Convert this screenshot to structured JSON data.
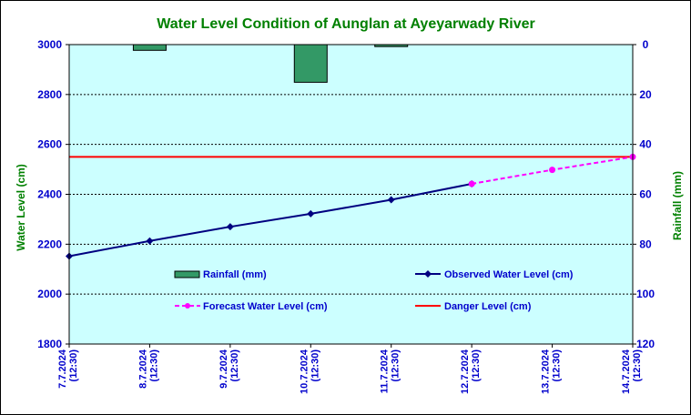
{
  "colors": {
    "plot_bg": "#ccffff",
    "title": "#008000",
    "left_axis": "#0000cc",
    "right_axis": "#008000",
    "rain_fill": "#339966",
    "observed": "#000080",
    "forecast": "#ff00ff",
    "danger": "#ff0000"
  },
  "chart_data": {
    "type": "line",
    "title": "Water Level Condition of Aunglan at Ayeyarwady River",
    "ylabel": "Water Level (cm)",
    "y2label": "Rainfall (mm)",
    "ylim": [
      1800,
      3000
    ],
    "y2lim": [
      0,
      120
    ],
    "y2_reversed": true,
    "grid": true,
    "legend_position": "inside-bottom",
    "y_ticks": [
      "3000",
      "2800",
      "2600",
      "2400",
      "2200",
      "2000",
      "1800"
    ],
    "y2_ticks": [
      "0",
      "20",
      "40",
      "60",
      "80",
      "100",
      "120"
    ],
    "x_tick_labels": [
      [
        "7.7.2024",
        "(12:30)"
      ],
      [
        "8.7.2024",
        "(12:30)"
      ],
      [
        "9.7.2024",
        "(12:30)"
      ],
      [
        "10.7.2024",
        "(12:30)"
      ],
      [
        "11.7.2024",
        "(12:30)"
      ],
      [
        "12.7.2024",
        "(12:30)"
      ],
      [
        "13.7.2024",
        "(12:30)"
      ],
      [
        "14.7.2024",
        "(12:30)"
      ]
    ],
    "series": [
      {
        "name": "Rainfall (mm)",
        "kind": "bar",
        "axis": "right",
        "values": [
          null,
          2.3,
          null,
          15.1,
          0.8,
          null,
          null,
          null
        ]
      },
      {
        "name": "Observed Water Level (cm)",
        "kind": "line",
        "axis": "left",
        "values": [
          2152,
          2213,
          2270,
          2322,
          2378,
          2442,
          null,
          null
        ]
      },
      {
        "name": "Forecast Water Level (cm)",
        "kind": "line-dashed",
        "axis": "left",
        "values": [
          null,
          null,
          null,
          null,
          null,
          2442,
          2498,
          2550
        ]
      },
      {
        "name": "Danger Level (cm)",
        "kind": "hline",
        "axis": "left",
        "value": 2550
      }
    ]
  }
}
